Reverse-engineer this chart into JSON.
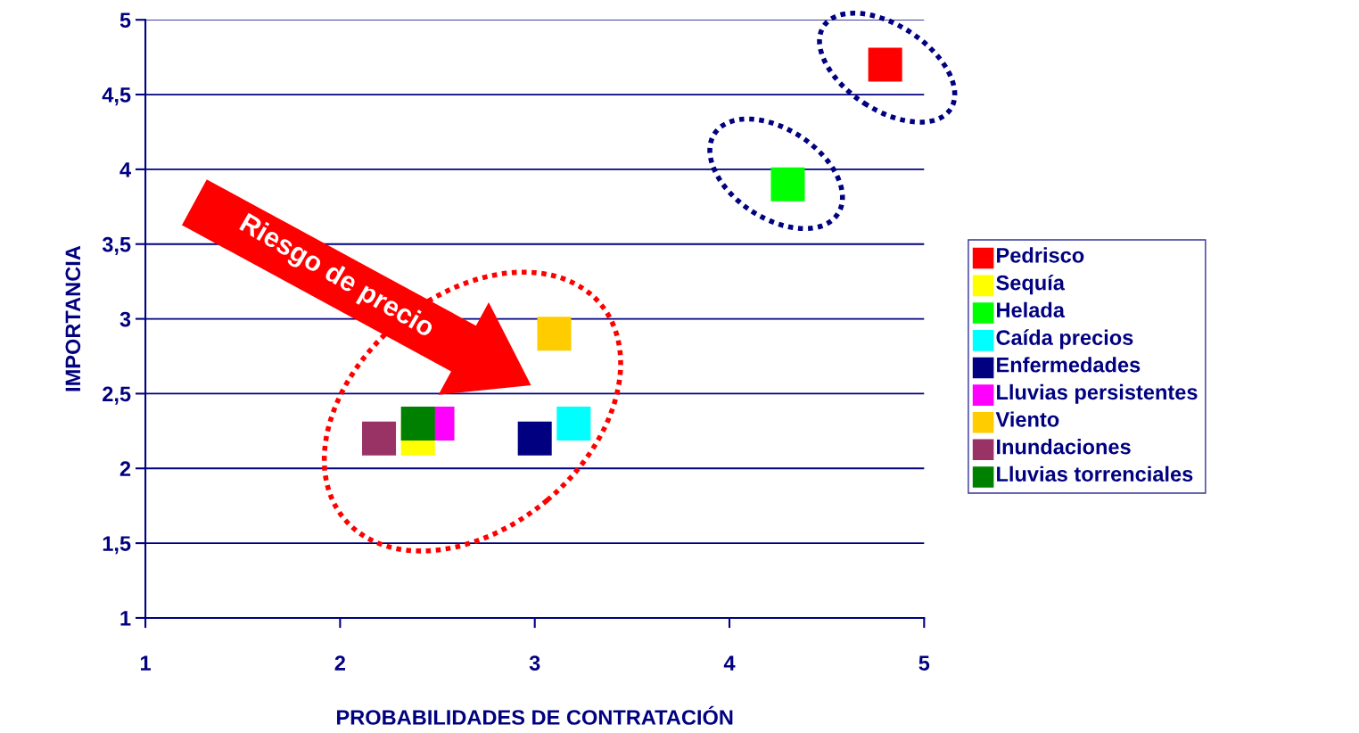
{
  "chart_data": {
    "type": "scatter",
    "xlabel": "PROBABILIDADES DE CONTRATACIÓN",
    "ylabel": "IMPORTANCIA",
    "xlim": [
      1,
      5
    ],
    "xticks": [
      1,
      2,
      3,
      4,
      5
    ],
    "ylim": [
      1,
      5
    ],
    "yticks": [
      1,
      {
        "value": 1.5,
        "label": "1,5"
      },
      2,
      {
        "value": 2.5,
        "label": "2,5"
      },
      3,
      {
        "value": 3.5,
        "label": "3,5"
      },
      4,
      {
        "value": 4.5,
        "label": "4,5"
      },
      5
    ],
    "grid": "y",
    "legend": "right",
    "marker": "square",
    "annotations": [
      "Riesgo de precio"
    ],
    "series": [
      {
        "name": "Pedrisco",
        "color": "#ff0000",
        "x": [
          4.8
        ],
        "values": [
          4.7
        ]
      },
      {
        "name": "Sequía",
        "color": "#ffff00",
        "x": [
          2.4
        ],
        "values": [
          2.2
        ]
      },
      {
        "name": "Helada",
        "color": "#00ff00",
        "x": [
          4.3
        ],
        "values": [
          3.9
        ]
      },
      {
        "name": "Caída precios",
        "color": "#00ffff",
        "x": [
          3.2
        ],
        "values": [
          2.3
        ]
      },
      {
        "name": "Enfermedades",
        "color": "#000080",
        "x": [
          3.0
        ],
        "values": [
          2.2
        ]
      },
      {
        "name": "Lluvias persistentes",
        "color": "#ff00ff",
        "x": [
          2.5
        ],
        "values": [
          2.3
        ]
      },
      {
        "name": "Viento",
        "color": "#ffcc00",
        "x": [
          3.1
        ],
        "values": [
          2.9
        ]
      },
      {
        "name": "Inundaciones",
        "color": "#993366",
        "x": [
          2.2
        ],
        "values": [
          2.2
        ]
      },
      {
        "name": "Lluvias torrenciales",
        "color": "#008000",
        "x": [
          2.4
        ],
        "values": [
          2.3
        ]
      }
    ]
  }
}
